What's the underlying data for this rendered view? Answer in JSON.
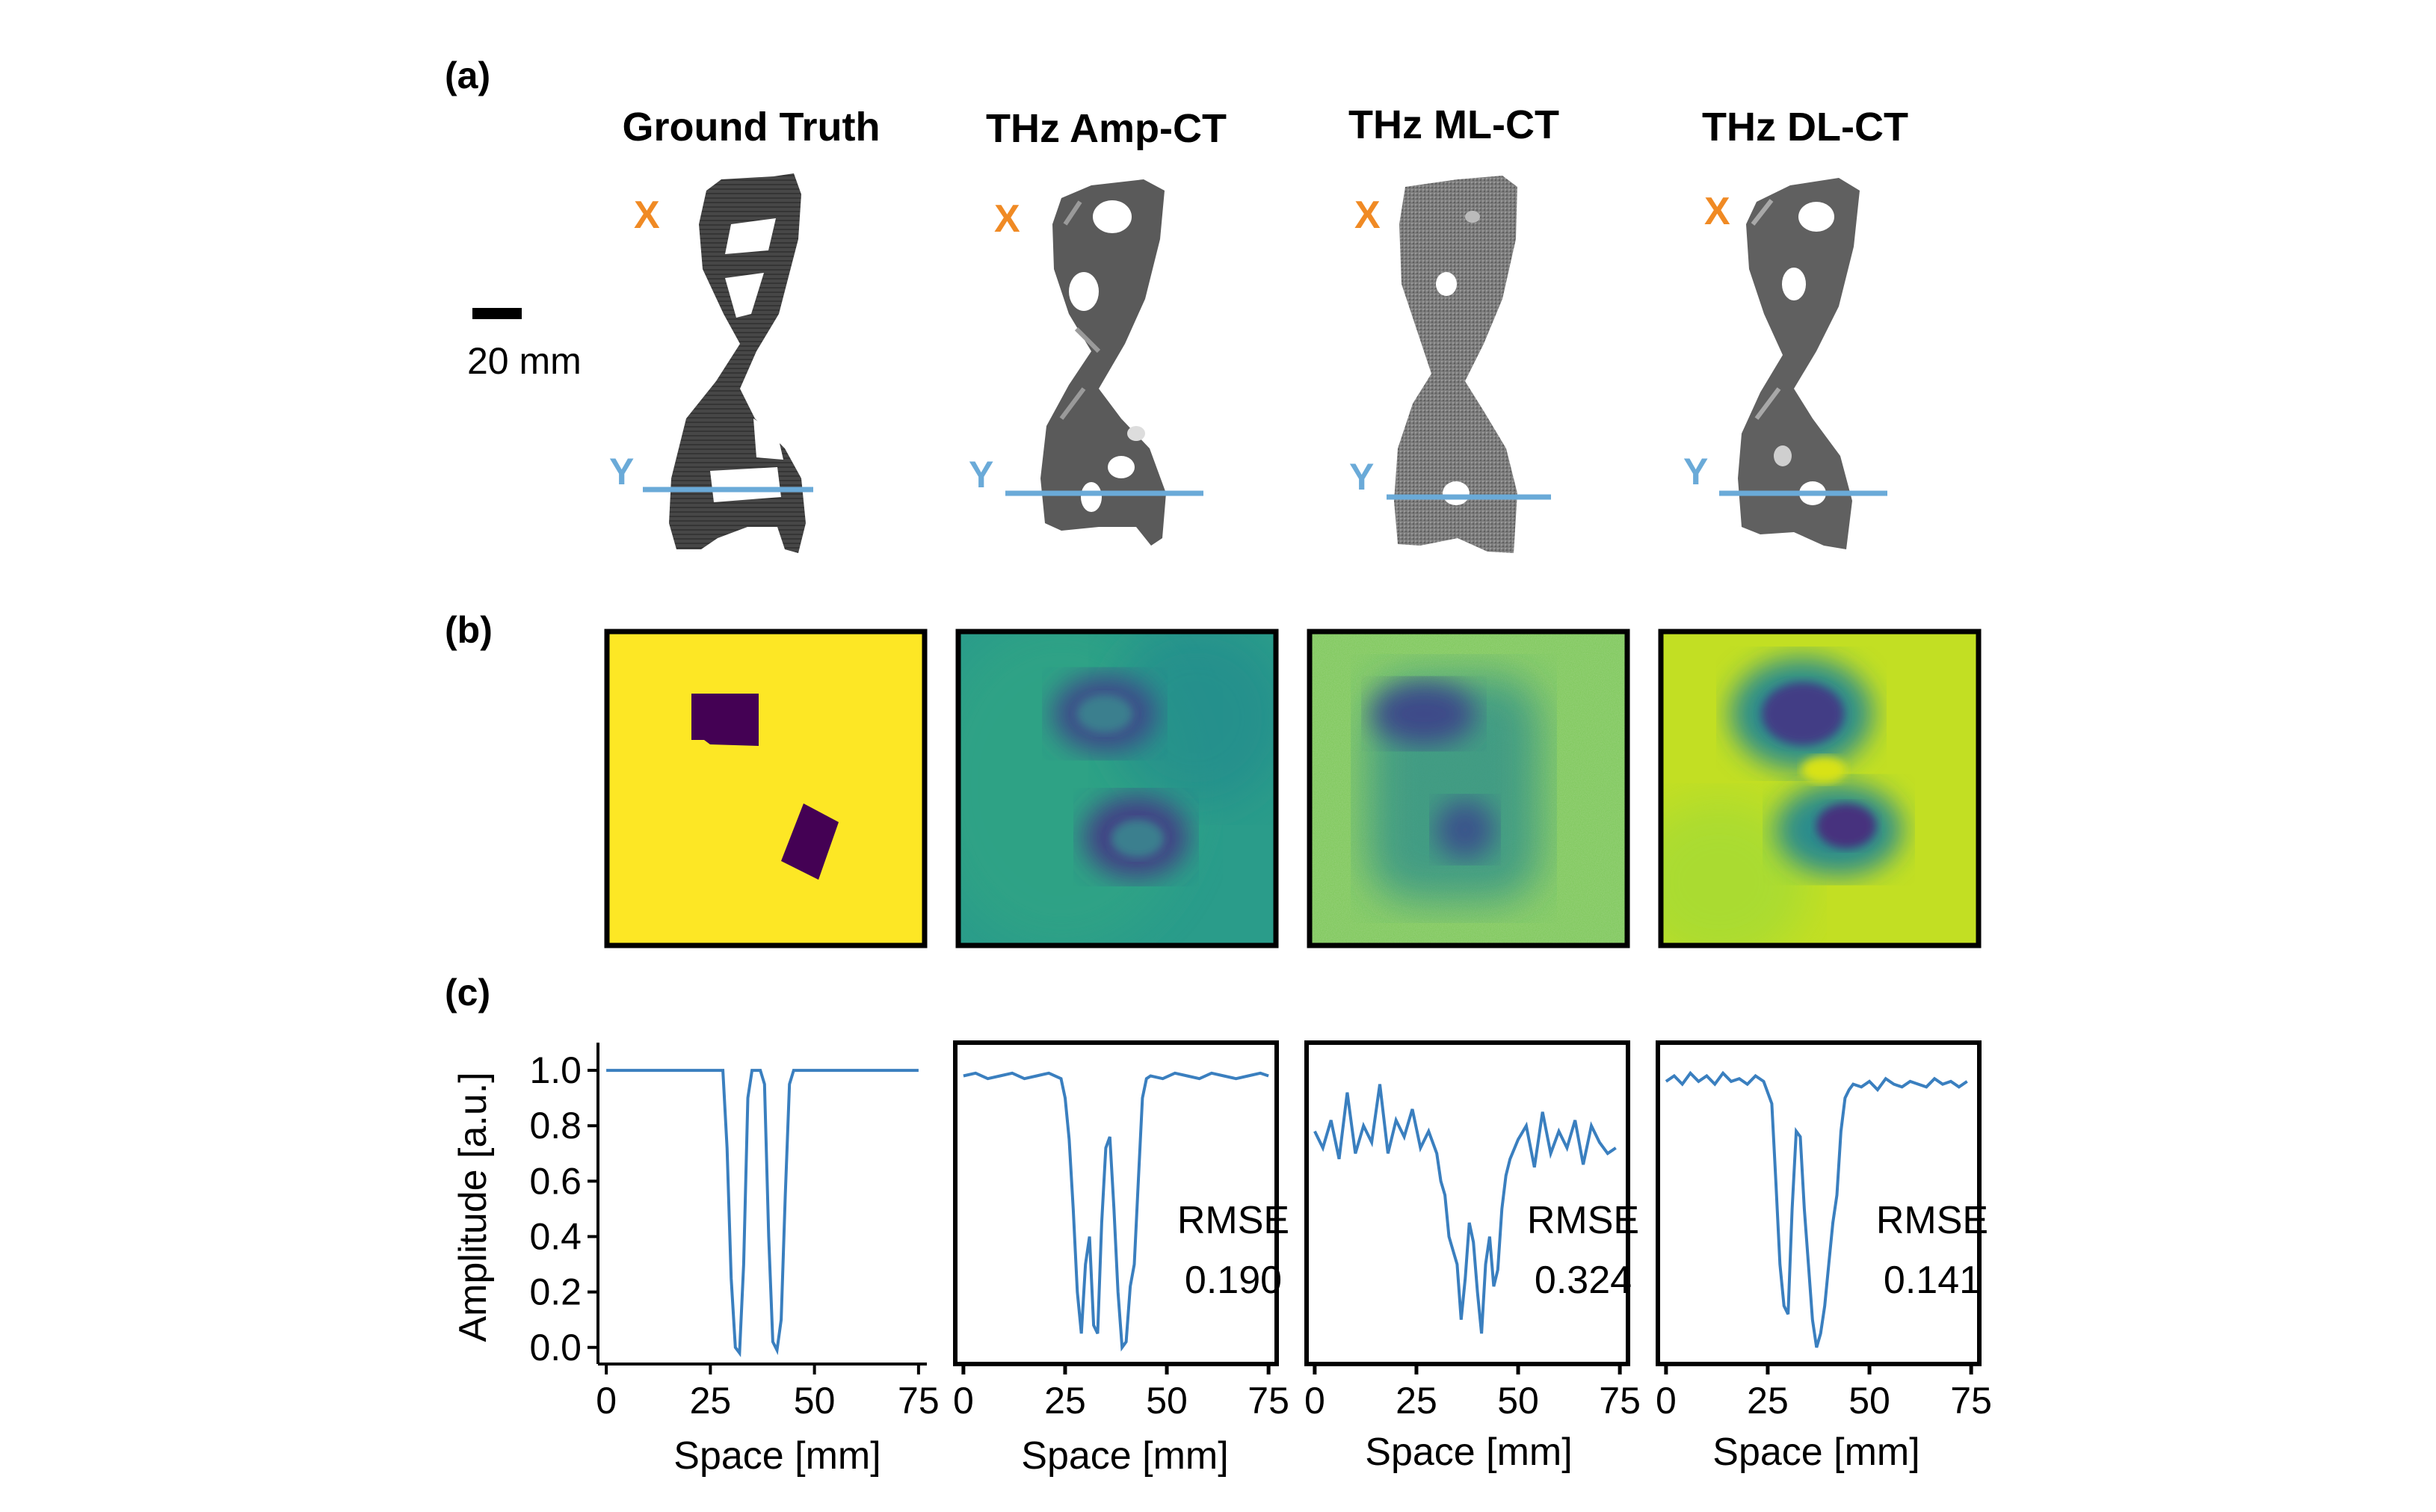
{
  "panel_labels": {
    "a": "(a)",
    "b": "(b)",
    "c": "(c)"
  },
  "columns": [
    {
      "title": "Ground Truth",
      "x_label": "X",
      "y_label": "Y"
    },
    {
      "title": "THz Amp-CT",
      "x_label": "X",
      "y_label": "Y"
    },
    {
      "title": "THz ML-CT",
      "x_label": "X",
      "y_label": "Y"
    },
    {
      "title": "THz DL-CT",
      "x_label": "X",
      "y_label": "Y"
    }
  ],
  "scale_bar": {
    "label": "20 mm"
  },
  "colors": {
    "x_marker": "#f08a24",
    "y_marker": "#6aaad8",
    "line": "#3a7fbf",
    "object": "#3a3a3a",
    "viridis_yellow": "#fde725",
    "viridis_purple": "#440154"
  },
  "chart_data": [
    {
      "type": "line",
      "title": "Ground Truth",
      "xlabel": "Space [mm]",
      "ylabel": "Amplitude [a.u.]",
      "xlim": [
        -2,
        77
      ],
      "ylim": [
        -0.06,
        1.1
      ],
      "xticks": [
        0,
        25,
        50,
        75
      ],
      "yticks": [
        0.0,
        0.2,
        0.4,
        0.6,
        0.8,
        1.0
      ],
      "ytick_labels": [
        "0.0",
        "0.2",
        "0.4",
        "0.6",
        "0.8",
        "1.0"
      ],
      "x": [
        0,
        28,
        29,
        30,
        31,
        32,
        33,
        34,
        35,
        36,
        37,
        38,
        39,
        40,
        41,
        42,
        43,
        44,
        45,
        75
      ],
      "y": [
        1.0,
        1.0,
        0.72,
        0.25,
        0.0,
        -0.02,
        0.3,
        0.9,
        1.0,
        1.0,
        1.0,
        0.95,
        0.4,
        0.02,
        -0.01,
        0.1,
        0.55,
        0.95,
        1.0,
        1.0
      ],
      "rmse_label": "",
      "rmse_value": ""
    },
    {
      "type": "line",
      "title": "THz Amp-CT",
      "xlabel": "Space [mm]",
      "ylabel": "",
      "xlim": [
        -2,
        77
      ],
      "ylim": [
        -0.06,
        1.1
      ],
      "xticks": [
        0,
        25,
        50,
        75
      ],
      "yticks": [],
      "ytick_labels": [],
      "x": [
        0,
        3,
        6,
        9,
        12,
        15,
        18,
        21,
        24,
        25,
        26,
        27,
        28,
        29,
        30,
        31,
        32,
        33,
        34,
        35,
        36,
        37,
        38,
        39,
        40,
        41,
        42,
        43,
        44,
        45,
        46,
        49,
        52,
        55,
        58,
        61,
        64,
        67,
        70,
        73,
        75
      ],
      "y": [
        0.98,
        0.99,
        0.97,
        0.98,
        0.99,
        0.97,
        0.98,
        0.99,
        0.97,
        0.9,
        0.75,
        0.5,
        0.2,
        0.05,
        0.3,
        0.4,
        0.08,
        0.05,
        0.45,
        0.72,
        0.76,
        0.5,
        0.2,
        0.0,
        0.02,
        0.22,
        0.3,
        0.6,
        0.9,
        0.97,
        0.98,
        0.97,
        0.99,
        0.98,
        0.97,
        0.99,
        0.98,
        0.97,
        0.98,
        0.99,
        0.98
      ],
      "rmse_label": "RMSE",
      "rmse_value": "0.190"
    },
    {
      "type": "line",
      "title": "THz ML-CT",
      "xlabel": "Space [mm]",
      "ylabel": "",
      "xlim": [
        -2,
        77
      ],
      "ylim": [
        -0.06,
        1.1
      ],
      "xticks": [
        0,
        25,
        50,
        75
      ],
      "yticks": [],
      "ytick_labels": [],
      "x": [
        0,
        2,
        4,
        6,
        8,
        10,
        12,
        14,
        16,
        18,
        20,
        22,
        24,
        26,
        28,
        30,
        31,
        32,
        33,
        34,
        35,
        36,
        37,
        38,
        39,
        40,
        41,
        42,
        43,
        44,
        45,
        46,
        47,
        48,
        50,
        52,
        54,
        56,
        58,
        60,
        62,
        64,
        66,
        68,
        70,
        72,
        74
      ],
      "y": [
        0.78,
        0.72,
        0.82,
        0.68,
        0.92,
        0.7,
        0.8,
        0.74,
        0.95,
        0.7,
        0.82,
        0.76,
        0.86,
        0.72,
        0.78,
        0.7,
        0.6,
        0.55,
        0.4,
        0.35,
        0.3,
        0.1,
        0.25,
        0.45,
        0.38,
        0.2,
        0.05,
        0.3,
        0.4,
        0.22,
        0.28,
        0.5,
        0.62,
        0.68,
        0.75,
        0.8,
        0.65,
        0.85,
        0.7,
        0.78,
        0.72,
        0.82,
        0.66,
        0.8,
        0.74,
        0.7,
        0.72
      ],
      "rmse_label": "RMSE",
      "rmse_value": "0.324"
    },
    {
      "type": "line",
      "title": "THz DL-CT",
      "xlabel": "Space [mm]",
      "ylabel": "",
      "xlim": [
        -2,
        77
      ],
      "ylim": [
        -0.06,
        1.1
      ],
      "xticks": [
        0,
        25,
        50,
        75
      ],
      "yticks": [],
      "ytick_labels": [],
      "x": [
        0,
        2,
        4,
        6,
        8,
        10,
        12,
        14,
        16,
        18,
        20,
        22,
        24,
        26,
        27,
        28,
        29,
        30,
        31,
        32,
        33,
        34,
        35,
        36,
        37,
        38,
        39,
        40,
        41,
        42,
        43,
        44,
        45,
        46,
        48,
        50,
        52,
        54,
        56,
        58,
        60,
        62,
        64,
        66,
        68,
        70,
        72,
        74
      ],
      "y": [
        0.96,
        0.98,
        0.95,
        0.99,
        0.96,
        0.98,
        0.95,
        0.99,
        0.96,
        0.97,
        0.95,
        0.98,
        0.96,
        0.88,
        0.6,
        0.3,
        0.15,
        0.12,
        0.5,
        0.78,
        0.76,
        0.5,
        0.3,
        0.1,
        0.0,
        0.05,
        0.15,
        0.3,
        0.45,
        0.55,
        0.78,
        0.9,
        0.93,
        0.95,
        0.94,
        0.96,
        0.93,
        0.97,
        0.95,
        0.94,
        0.96,
        0.95,
        0.94,
        0.97,
        0.95,
        0.96,
        0.94,
        0.96
      ],
      "rmse_label": "RMSE",
      "rmse_value": "0.141"
    }
  ]
}
